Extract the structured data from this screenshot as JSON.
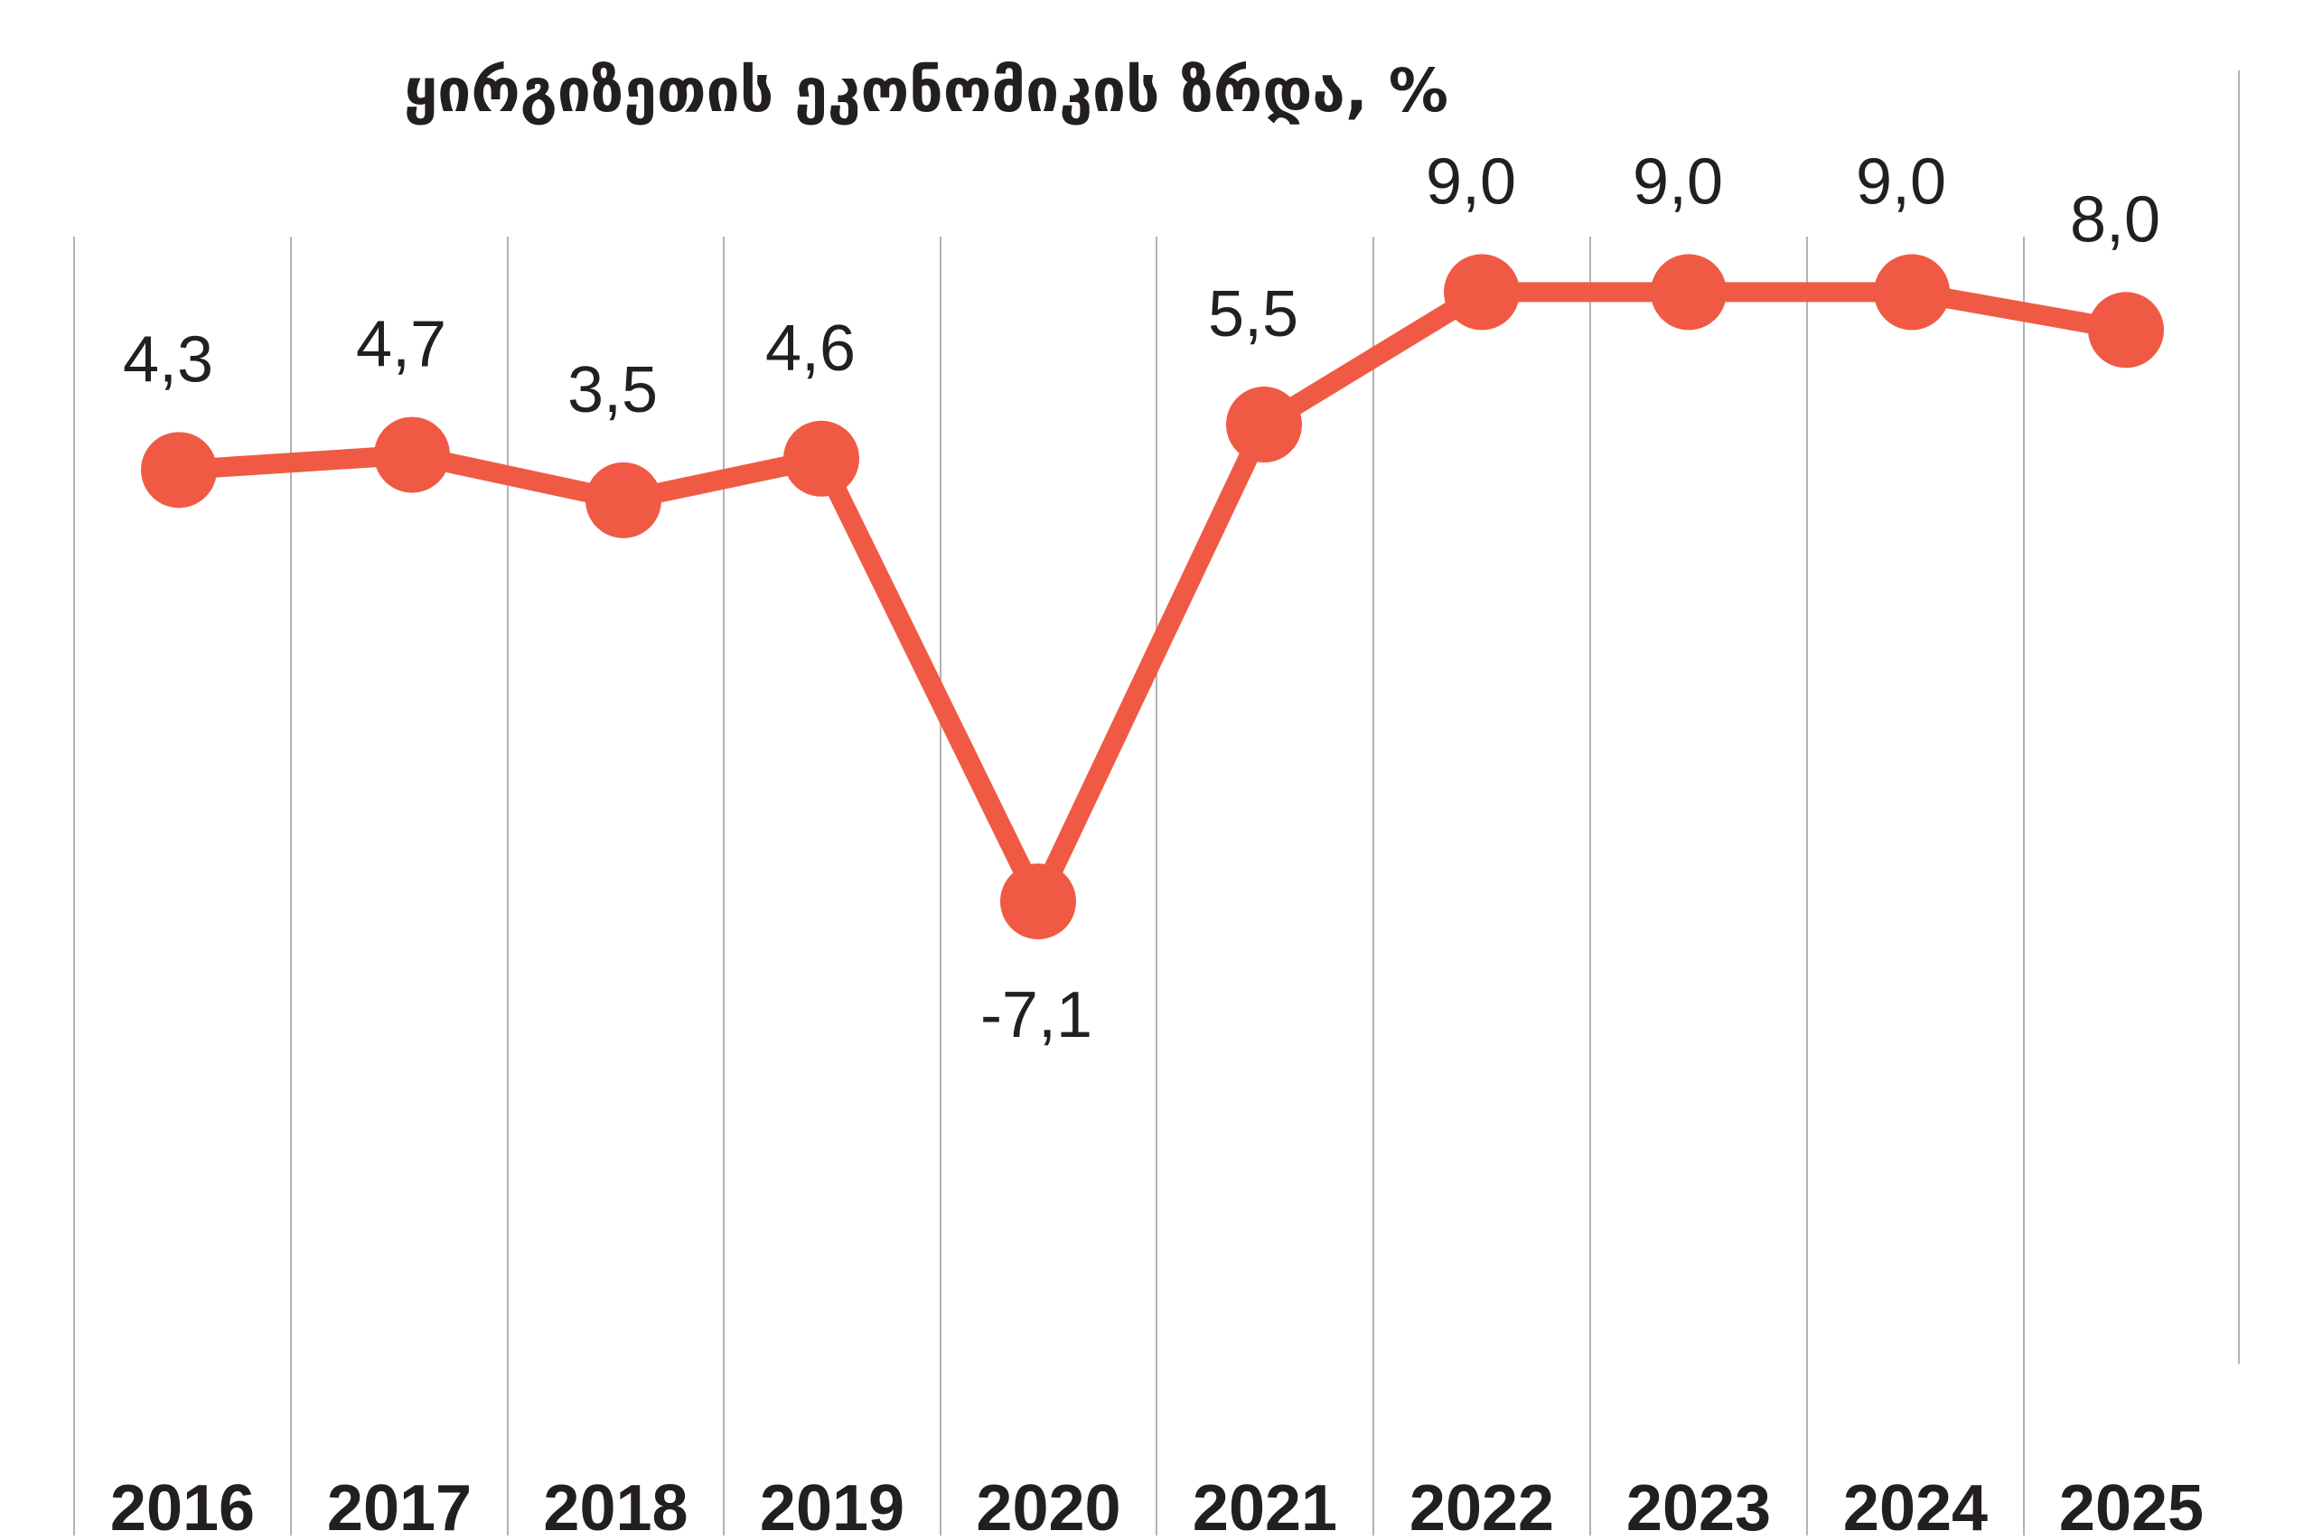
{
  "chart_data": {
    "type": "line",
    "title": "ყირგიზეთის ეკონომიკის ზრდა, %",
    "categories": [
      "2016",
      "2017",
      "2018",
      "2019",
      "2020",
      "2021",
      "2022",
      "2023",
      "2024",
      "2025"
    ],
    "values": [
      4.3,
      4.7,
      3.5,
      4.6,
      -7.1,
      5.5,
      9.0,
      9.0,
      9.0,
      8.0
    ],
    "value_labels": [
      "4,3",
      "4,7",
      "3,5",
      "4,6",
      "-7,1",
      "5,5",
      "9,0",
      "9,0",
      "9,0",
      "8,0"
    ],
    "xlabel": "",
    "ylabel": "",
    "line_color": "#f05a44",
    "grid": "vertical",
    "grid_color": "#b3b3b3",
    "text_color": "#231f20"
  }
}
